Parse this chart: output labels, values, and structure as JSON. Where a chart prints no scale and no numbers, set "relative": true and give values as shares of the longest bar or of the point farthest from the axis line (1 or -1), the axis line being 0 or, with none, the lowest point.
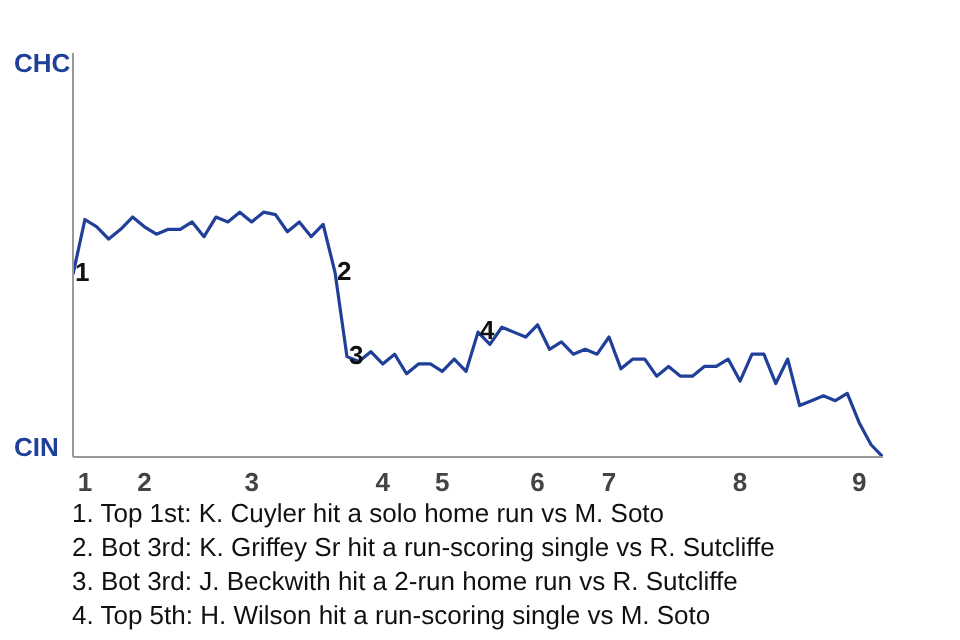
{
  "chart_data": {
    "type": "line",
    "categories": [
      null,
      "1",
      null,
      null,
      null,
      null,
      "2",
      null,
      null,
      null,
      null,
      null,
      null,
      null,
      null,
      "3",
      null,
      null,
      null,
      null,
      null,
      null,
      null,
      null,
      null,
      null,
      "4",
      null,
      null,
      null,
      null,
      "5",
      null,
      null,
      null,
      null,
      null,
      null,
      null,
      "6",
      null,
      null,
      null,
      null,
      null,
      "7",
      null,
      null,
      null,
      null,
      null,
      null,
      null,
      null,
      null,
      null,
      "8",
      null,
      null,
      null,
      null,
      null,
      null,
      null,
      null,
      null,
      "9",
      null,
      null
    ],
    "relative": true,
    "series": [
      {
        "color": "#1f3f99",
        "line_style": "solid",
        "values": [
          0.746,
          0.97,
          0.94,
          0.89,
          0.93,
          0.98,
          0.94,
          0.91,
          0.93,
          0.93,
          0.96,
          0.9,
          0.98,
          0.96,
          1,
          0.96,
          1,
          0.99,
          0.92,
          0.96,
          0.9,
          0.95,
          0.753,
          0.41,
          0.39,
          0.43,
          0.38,
          0.42,
          0.34,
          0.38,
          0.38,
          0.35,
          0.4,
          0.35,
          0.51,
          0.46,
          0.53,
          0.51,
          0.49,
          0.54,
          0.44,
          0.47,
          0.42,
          0.44,
          0.42,
          0.49,
          0.36,
          0.4,
          0.4,
          0.33,
          0.37,
          0.33,
          0.33,
          0.37,
          0.37,
          0.4,
          0.31,
          0.42,
          0.42,
          0.3,
          0.4,
          0.21,
          0.23,
          0.25,
          0.23,
          0.26,
          0.14,
          0.05,
          0
        ]
      }
    ],
    "annotations": [
      {
        "text": "1",
        "y": 0.746
      },
      {
        "text": "2",
        "y": 0.753
      },
      {
        "text": "3",
        "y": 0.41
      },
      {
        "text": "4",
        "y": 0.51
      },
      "CHC",
      "CIN",
      "1. Top 1st: K. Cuyler hit a solo home run vs M. Soto",
      "2. Bot 3rd: K. Griffey Sr hit a run-scoring single vs R. Sutcliffe",
      "3. Bot 3rd: J. Beckwith hit a 2-run home run vs R. Sutcliffe",
      "4. Top 5th: H. Wilson hit a run-scoring single vs M. Soto"
    ]
  }
}
